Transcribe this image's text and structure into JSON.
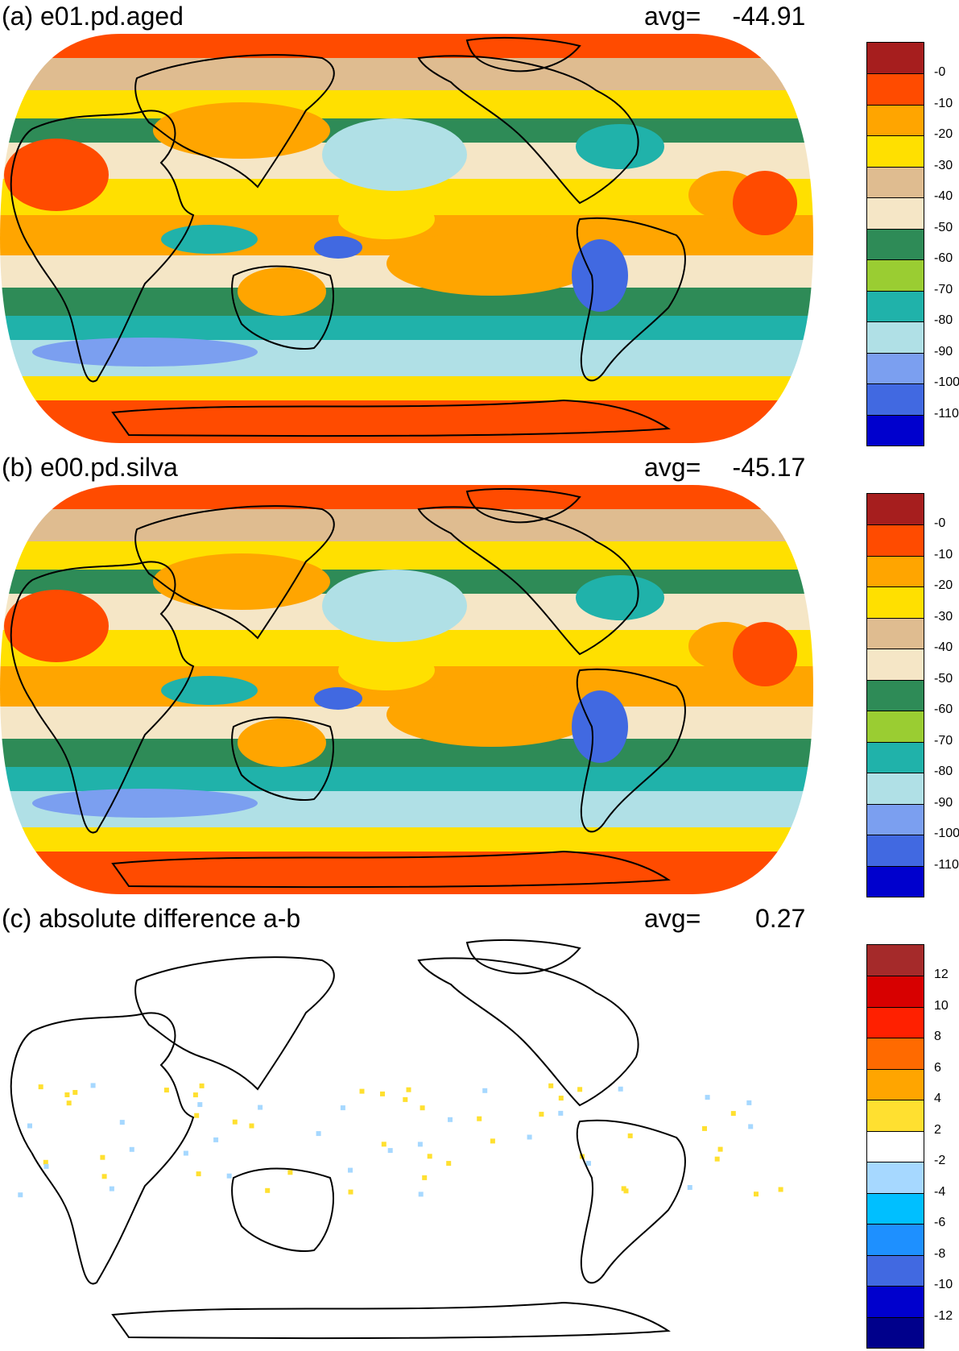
{
  "panels": [
    {
      "id": "a",
      "title": "(a) e01.pd.aged",
      "avg_label": "avg=",
      "avg_value": "-44.91",
      "colorbar": {
        "colors": [
          "#a61e1e",
          "#ff4b00",
          "#ffa500",
          "#ffe000",
          "#dfbc90",
          "#f5e6c6",
          "#2e8b57",
          "#9acd32",
          "#20b2aa",
          "#b0e0e6",
          "#7b9ff0",
          "#4169e1",
          "#0000cd"
        ],
        "labels": [
          "-0",
          "-10",
          "-20",
          "-30",
          "-40",
          "-50",
          "-60",
          "-70",
          "-80",
          "-90",
          "-100",
          "-110"
        ]
      },
      "map_fill": "full"
    },
    {
      "id": "b",
      "title": "(b) e00.pd.silva",
      "avg_label": "avg=",
      "avg_value": "-45.17",
      "colorbar": {
        "colors": [
          "#a61e1e",
          "#ff4b00",
          "#ffa500",
          "#ffe000",
          "#dfbc90",
          "#f5e6c6",
          "#2e8b57",
          "#9acd32",
          "#20b2aa",
          "#b0e0e6",
          "#7b9ff0",
          "#4169e1",
          "#0000cd"
        ],
        "labels": [
          "-0",
          "-10",
          "-20",
          "-30",
          "-40",
          "-50",
          "-60",
          "-70",
          "-80",
          "-90",
          "-100",
          "-110"
        ]
      },
      "map_fill": "full"
    },
    {
      "id": "c",
      "title": "(c) absolute difference a-b",
      "avg_label": "avg=",
      "avg_value": "0.27",
      "colorbar": {
        "colors": [
          "#a52a2a",
          "#d70000",
          "#ff2000",
          "#ff6a00",
          "#ffa500",
          "#ffe030",
          "#ffffff",
          "#a6d8ff",
          "#00bfff",
          "#1e90ff",
          "#4169e1",
          "#0000cd",
          "#00008b"
        ],
        "labels": [
          "12",
          "10",
          "8",
          "6",
          "4",
          "2",
          "-2",
          "-4",
          "-6",
          "-8",
          "-10",
          "-12"
        ]
      },
      "map_fill": "sparse"
    }
  ]
}
